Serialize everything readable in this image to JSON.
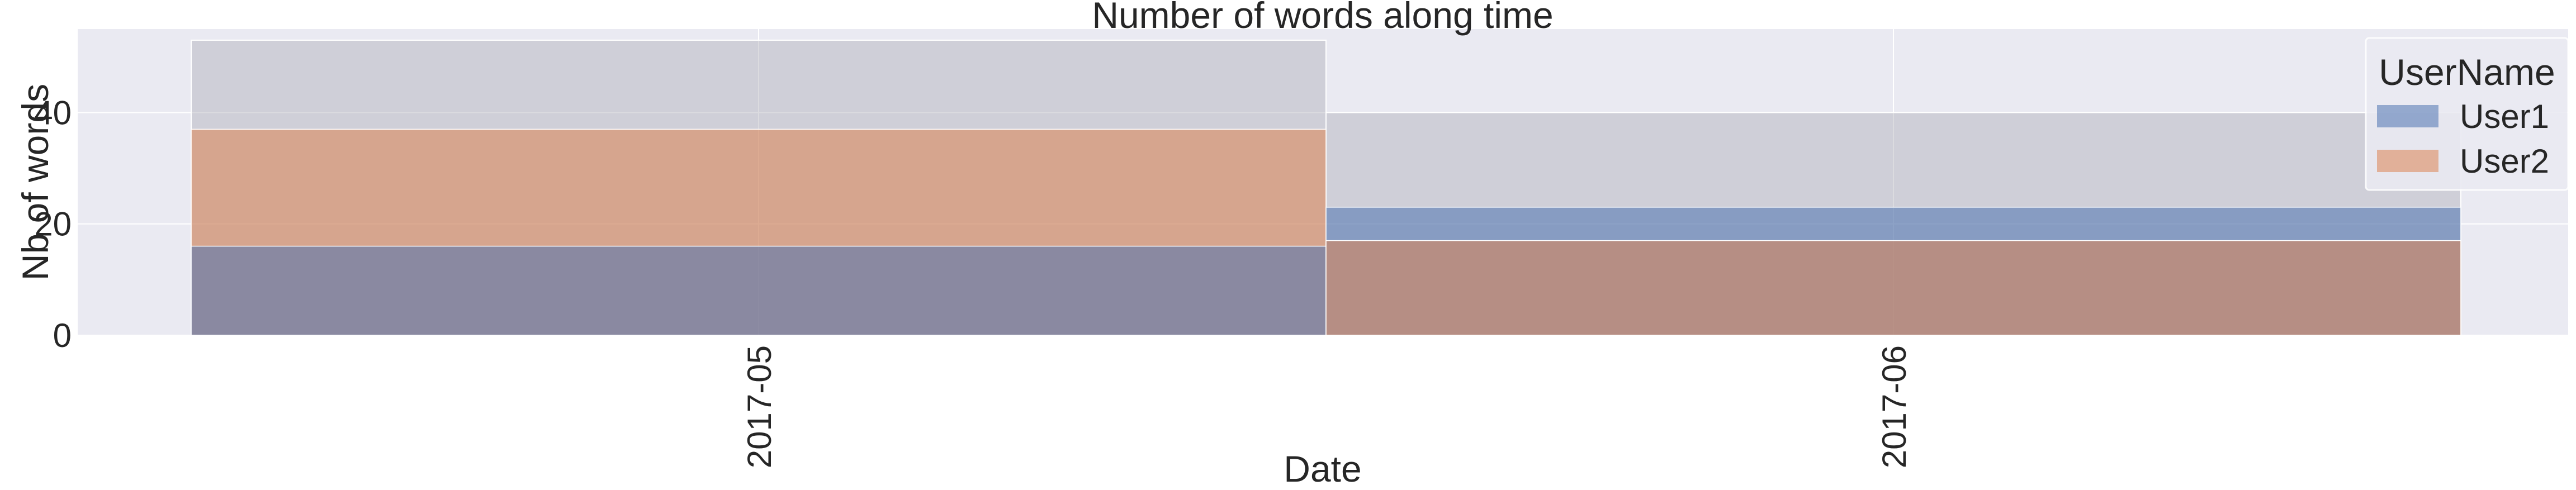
{
  "chart_data": {
    "type": "bar",
    "title": "Number of words along time",
    "xlabel": "Date",
    "ylabel": "Nb of words",
    "categories": [
      "2017-05",
      "2017-06"
    ],
    "series": [
      {
        "name": "User1",
        "values": [
          16,
          23
        ],
        "color": "#4c72b0"
      },
      {
        "name": "User2",
        "values": [
          37,
          17
        ],
        "color": "#dd8452"
      }
    ],
    "ylim": [
      0,
      55
    ],
    "yticks": [
      0,
      20,
      40
    ],
    "grid": true,
    "legend": {
      "title": "UserName",
      "placement": "top-right"
    },
    "background_color": "#eaeaf2",
    "stack_color": "#b0b0b8"
  }
}
